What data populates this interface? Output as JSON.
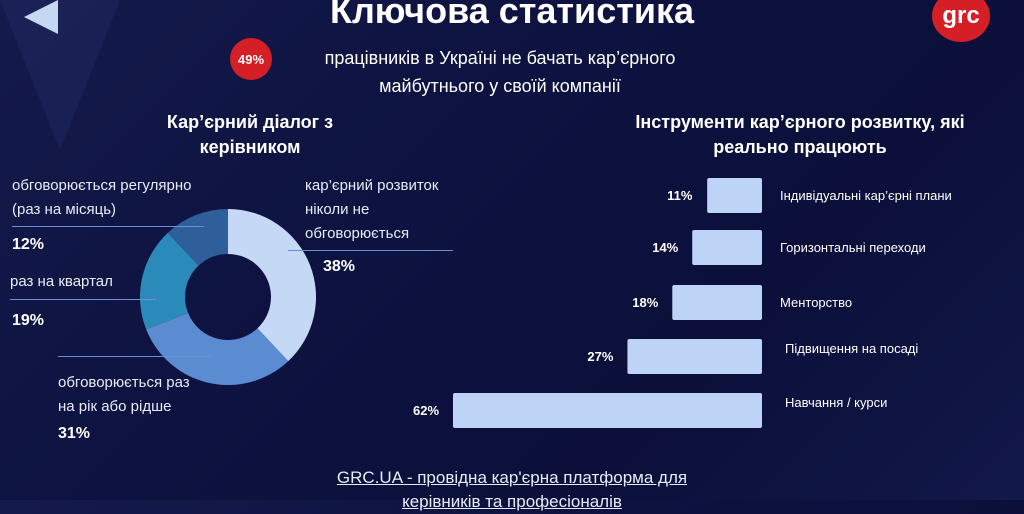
{
  "header": {
    "title": "Ключова статистика",
    "logo": "grc",
    "badge": "49%",
    "subtitle_line1": "працівників в Україні не бачать кар’єрного",
    "subtitle_line2": "майбутнього у своїй компанії"
  },
  "footer": {
    "line1": "GRC.UA - провідна кар'єрна платформа для",
    "line2": "керівників та професіоналів"
  },
  "chart_data": [
    {
      "type": "pie",
      "title": "Кар’єрний діалог з керівником",
      "title_line1": "Кар’єрний діалог з",
      "title_line2": "керівником",
      "slices": [
        {
          "label": "кар’єрний розвиток ніколи не обговорюється",
          "value": 38,
          "pct": "38%",
          "color": "#c5d8f5"
        },
        {
          "label": "обговорюється раз на рік або рідше",
          "value": 31,
          "pct": "31%",
          "color": "#5b8bd0"
        },
        {
          "label": "раз на квартал",
          "value": 19,
          "pct": "19%",
          "color": "#2a8bba"
        },
        {
          "label": "обговорюється регулярно (раз на місяць)",
          "value": 12,
          "pct": "12%",
          "color": "#2f5f9a"
        }
      ],
      "labels_lines": {
        "never": [
          "кар’єрний розвиток",
          "ніколи не",
          "обговорюється"
        ],
        "yearly": [
          "обговорюється раз",
          "на рік або рідше"
        ],
        "quarter": [
          "раз на квартал"
        ],
        "monthly": [
          "обговорюється регулярно",
          "(раз на місяць)"
        ]
      }
    },
    {
      "type": "bar",
      "orientation": "horizontal",
      "title": "Інструменти кар’єрного розвитку, які реально працюють",
      "title_line1": "Інструменти кар’єрного розвитку, які",
      "title_line2": "реально працюють",
      "categories": [
        "Індивідуальні кар’єрні плани",
        "Горизонтальні переходи",
        "Менторство",
        "Підвищення на посаді",
        "Навчання / курси"
      ],
      "values": [
        11,
        14,
        18,
        27,
        62
      ],
      "value_labels": [
        "11%",
        "14%",
        "18%",
        "27%",
        "62%"
      ],
      "color": "#bdd4f7"
    }
  ]
}
